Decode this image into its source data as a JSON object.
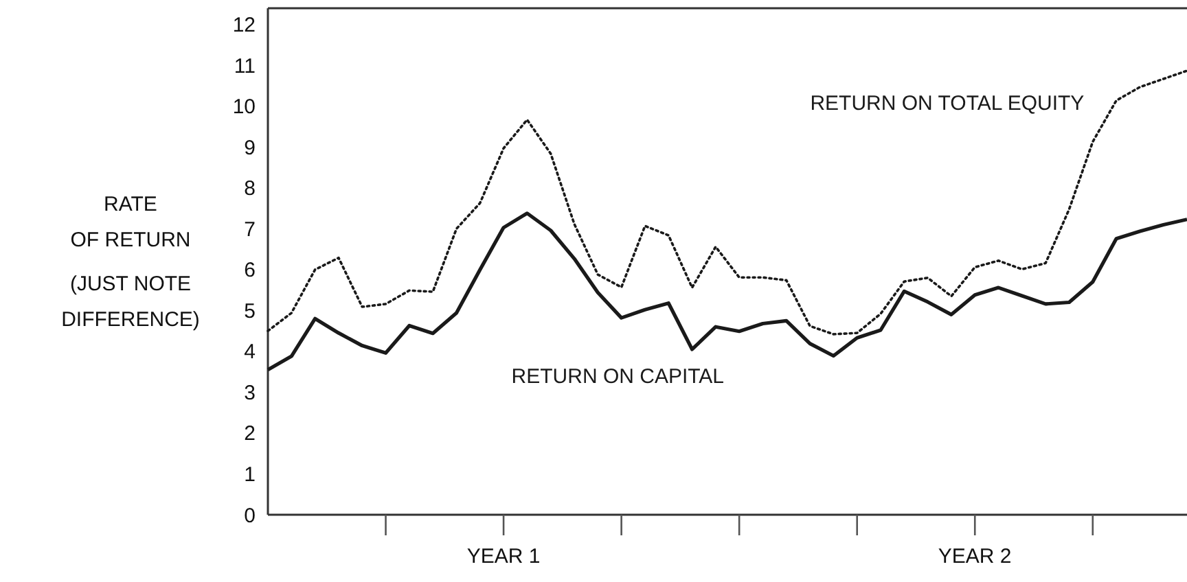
{
  "chart_data": {
    "type": "line",
    "ylabel": "RATE\nOF RETURN\n(JUST NOTE\nDIFFERENCE)",
    "categories": [
      null,
      null,
      null,
      null,
      null,
      null,
      null,
      null,
      null,
      null,
      "YEAR 1",
      null,
      null,
      null,
      null,
      null,
      null,
      null,
      null,
      null,
      null,
      null,
      null,
      null,
      null,
      null,
      null,
      null,
      null,
      null,
      "YEAR 2",
      null,
      null,
      null,
      null,
      null,
      null,
      null,
      null,
      null
    ],
    "ylim": [
      0,
      12.4
    ],
    "yticks": [
      0,
      1,
      2,
      3,
      4,
      5,
      6,
      7,
      8,
      9,
      10,
      11,
      12
    ],
    "grid": false,
    "legend": false,
    "marker": "none",
    "series": [
      {
        "name": "RETURN ON TOTAL EQUITY",
        "color": "#1a1a1a",
        "line_style": "dotted",
        "values": [
          4.5,
          4.94,
          6.0,
          6.29,
          5.09,
          5.16,
          5.49,
          5.46,
          7.0,
          7.63,
          8.97,
          9.67,
          8.84,
          7.12,
          5.88,
          5.57,
          7.07,
          6.84,
          5.56,
          6.56,
          5.81,
          5.81,
          5.74,
          4.62,
          4.42,
          4.45,
          4.92,
          5.71,
          5.8,
          5.35,
          6.06,
          6.22,
          6.01,
          6.16,
          7.48,
          9.13,
          10.14,
          10.47,
          10.67,
          10.87
        ]
      },
      {
        "name": "RETURN ON CAPITAL",
        "color": "#1a1a1a",
        "line_style": "solid",
        "values": [
          3.55,
          3.88,
          4.8,
          4.45,
          4.14,
          3.96,
          4.63,
          4.44,
          4.94,
          6.0,
          7.03,
          7.38,
          6.96,
          6.27,
          5.44,
          4.82,
          5.02,
          5.18,
          4.05,
          4.6,
          4.49,
          4.68,
          4.75,
          4.19,
          3.89,
          4.33,
          4.52,
          5.47,
          5.21,
          4.9,
          5.38,
          5.56,
          5.36,
          5.16,
          5.2,
          5.7,
          6.76,
          6.94,
          7.1,
          7.23
        ]
      }
    ]
  }
}
